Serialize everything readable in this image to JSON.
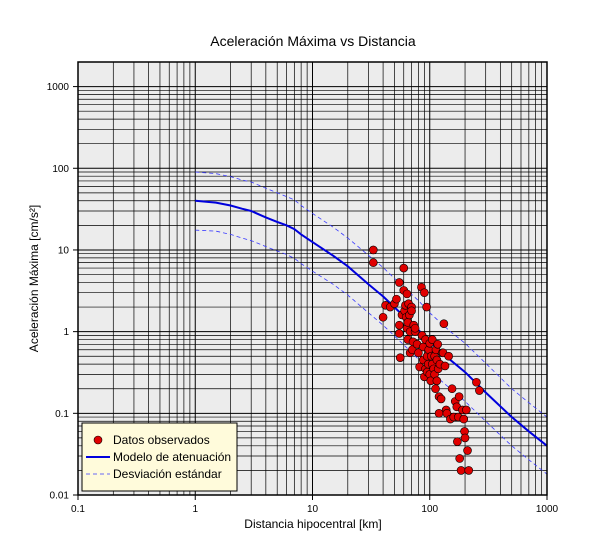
{
  "chart_data": {
    "type": "scatter",
    "title": "Aceleración Máxima vs Distancia",
    "xlabel": "Distancia hipocentral [km]",
    "ylabel": "Aceleración Máxima [cm/s²]",
    "xscale": "log",
    "yscale": "log",
    "xlim": [
      0.1,
      1000
    ],
    "ylim": [
      0.01,
      2000
    ],
    "xticks": [
      "0.1",
      "1",
      "10",
      "100",
      "1000"
    ],
    "yticks": [
      "0.01",
      "0.1",
      "1",
      "10",
      "100",
      "1000"
    ],
    "grid": true,
    "legend_position": "bottom-left",
    "colors": {
      "plot_background": "#ececec",
      "points": "#e00000",
      "model": "#0000dd",
      "std": "#3a3aff"
    },
    "series": [
      {
        "name": "Datos observados",
        "kind": "points",
        "x": [
          33,
          33,
          40,
          42,
          46,
          50,
          52,
          55,
          55,
          55,
          56,
          58,
          60,
          60,
          61,
          62,
          63,
          64,
          64,
          65,
          65,
          66,
          67,
          68,
          68,
          70,
          70,
          71,
          72,
          73,
          75,
          75,
          78,
          80,
          82,
          85,
          86,
          88,
          88,
          90,
          90,
          92,
          92,
          94,
          95,
          95,
          97,
          98,
          100,
          100,
          102,
          103,
          105,
          105,
          108,
          110,
          110,
          112,
          113,
          115,
          115,
          117,
          118,
          120,
          120,
          122,
          125,
          128,
          130,
          132,
          135,
          138,
          140,
          145,
          150,
          155,
          160,
          165,
          170,
          172,
          175,
          178,
          180,
          185,
          190,
          195,
          198,
          200,
          205,
          210,
          215,
          250,
          265
        ],
        "y": [
          10,
          7,
          1.5,
          2.1,
          2,
          2.2,
          2.5,
          4,
          1.2,
          0.95,
          0.48,
          1.6,
          6,
          3.2,
          1.8,
          2.1,
          1.5,
          1.1,
          2.9,
          0.8,
          1.3,
          2.2,
          1.6,
          1.0,
          0.55,
          2.0,
          1.8,
          0.6,
          0.75,
          1.2,
          1.0,
          1.1,
          0.7,
          0.55,
          0.37,
          3.5,
          0.9,
          0.45,
          0.65,
          3.0,
          0.28,
          0.8,
          0.35,
          2.0,
          0.5,
          0.32,
          0.4,
          0.6,
          0.72,
          0.3,
          0.25,
          0.5,
          0.4,
          0.8,
          0.35,
          0.3,
          0.5,
          0.2,
          0.6,
          0.25,
          0.45,
          0.7,
          0.35,
          0.16,
          0.1,
          0.4,
          0.15,
          0.55,
          0.55,
          1.25,
          0.38,
          0.11,
          0.1,
          0.5,
          0.085,
          0.2,
          0.09,
          0.14,
          0.12,
          0.045,
          0.09,
          0.16,
          0.028,
          0.02,
          0.11,
          0.085,
          0.06,
          0.05,
          0.11,
          0.035,
          0.02,
          0.24,
          0.19
        ]
      },
      {
        "name": "Modelo de atenuación",
        "kind": "line",
        "x": [
          1,
          1.5,
          2,
          2.5,
          3,
          4,
          5,
          6,
          7,
          8,
          10,
          15,
          20,
          30,
          40,
          60,
          80,
          100,
          150,
          200,
          300,
          500,
          700,
          1000
        ],
        "y": [
          40,
          38,
          35,
          32,
          30,
          25,
          22,
          20,
          18,
          15.5,
          12.5,
          8.5,
          6.3,
          3.8,
          2.7,
          1.55,
          1.05,
          0.75,
          0.45,
          0.32,
          0.18,
          0.09,
          0.06,
          0.04
        ]
      },
      {
        "name": "Desviación estándar",
        "kind": "dashed-line",
        "x": [
          1,
          1.5,
          2,
          2.5,
          3,
          4,
          5,
          6,
          7,
          8,
          10,
          15,
          20,
          30,
          40,
          60,
          80,
          100,
          150,
          200,
          300,
          500,
          700,
          1000
        ],
        "y": [
          90,
          86,
          79,
          72,
          68,
          57,
          50,
          45,
          41,
          35,
          28,
          19,
          14,
          8.6,
          6.1,
          3.5,
          2.4,
          1.7,
          1.0,
          0.72,
          0.41,
          0.2,
          0.135,
          0.09
        ]
      },
      {
        "name": "",
        "kind": "dashed-line",
        "x": [
          1,
          1.5,
          2,
          2.5,
          3,
          4,
          5,
          6,
          7,
          8,
          10,
          15,
          20,
          30,
          40,
          60,
          80,
          100,
          150,
          200,
          300,
          500,
          700,
          1000
        ],
        "y": [
          17.5,
          17,
          15.5,
          14,
          13,
          11,
          9.7,
          8.8,
          7.9,
          6.8,
          5.5,
          3.8,
          2.8,
          1.7,
          1.2,
          0.69,
          0.46,
          0.33,
          0.2,
          0.14,
          0.08,
          0.04,
          0.027,
          0.018
        ]
      }
    ]
  }
}
